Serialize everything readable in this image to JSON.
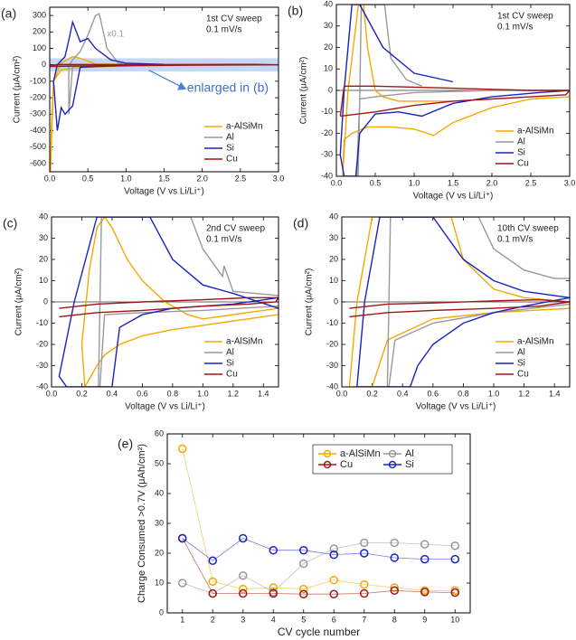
{
  "chart_data": [
    {
      "type": "line",
      "label": "(a)",
      "annotations": [
        "1st CV sweep",
        "0.1 mV/s"
      ],
      "scale_note": "x0.1",
      "callout": "enlarged in (b)",
      "xlabel": "Voltage (V vs Li/Li⁺)",
      "ylabel": "Current (μA/cm²)",
      "xlim": [
        0,
        3
      ],
      "ylim": [
        -650,
        350
      ],
      "xticks": [
        {
          "value": 0,
          "label": "0.0"
        },
        0.5,
        {
          "value": 1,
          "label": "1.0"
        },
        1.5,
        {
          "value": 2,
          "label": "2.0"
        },
        2.5,
        {
          "value": 3,
          "label": "3.0"
        }
      ],
      "yticks": [
        -600,
        -500,
        -400,
        -300,
        -200,
        -100,
        0,
        100,
        200,
        300
      ],
      "highlight": [
        -40,
        40
      ],
      "highlight_color": "#b8cdf0",
      "zero_line": true,
      "legend": "lower right",
      "series": [
        {
          "name": "a-AlSiMn",
          "color": "#f5a800",
          "x": [
            1.5,
            1.0,
            0.6,
            0.3,
            0.15,
            0.05,
            0.02,
            0.01,
            0.05,
            0.15,
            0.3,
            0.4,
            0.6,
            1.0,
            1.5
          ],
          "values": [
            -5,
            -8,
            -12,
            -20,
            -30,
            -100,
            -400,
            -650,
            -100,
            10,
            50,
            40,
            5,
            2,
            0
          ]
        },
        {
          "name": "Al",
          "color": "#999999",
          "x": [
            3.0,
            2.0,
            1.0,
            0.4,
            0.3,
            0.25,
            0.25,
            0.3,
            0.4,
            0.5,
            0.6,
            0.65,
            0.75,
            0.9,
            1.0
          ],
          "values": [
            0,
            0,
            -3,
            -5,
            -10,
            -300,
            -10,
            30,
            80,
            180,
            300,
            310,
            100,
            10,
            0
          ]
        },
        {
          "name": "Si",
          "color": "#1a22c0",
          "x": [
            1.5,
            1.0,
            0.6,
            0.4,
            0.3,
            0.2,
            0.15,
            0.1,
            0.05,
            0.1,
            0.2,
            0.25,
            0.3,
            0.4,
            0.5,
            0.6,
            0.8,
            1.0,
            1.5
          ],
          "values": [
            3,
            -5,
            -10,
            -15,
            -250,
            -300,
            -260,
            -400,
            -100,
            0,
            50,
            150,
            260,
            140,
            160,
            100,
            30,
            10,
            3
          ]
        },
        {
          "name": "Cu",
          "color": "#a01515",
          "x": [
            0,
            1,
            2,
            3,
            2.7,
            2,
            1,
            0.1,
            0
          ],
          "values": [
            -10,
            -5,
            -2,
            0,
            3,
            2,
            1,
            2,
            -10
          ]
        }
      ]
    },
    {
      "type": "line",
      "label": "(b)",
      "annotations": [
        "1st CV sweep",
        "0.1 mV/s"
      ],
      "xlabel": "Voltage (V vs Li/Li⁺)",
      "ylabel": "Current (μA/cm²)",
      "xlim": [
        0,
        3
      ],
      "ylim": [
        -40,
        40
      ],
      "xticks": [
        {
          "value": 0,
          "label": "0.0"
        },
        0.5,
        {
          "value": 1,
          "label": "1.0"
        },
        1.5,
        {
          "value": 2,
          "label": "2.0"
        },
        2.5,
        {
          "value": 3,
          "label": "3.0"
        }
      ],
      "yticks": [
        -40,
        -30,
        -20,
        -10,
        0,
        10,
        20,
        30,
        40
      ],
      "zero_line": true,
      "legend": "lower right",
      "series": [
        {
          "name": "a-AlSiMn",
          "color": "#f5a800",
          "x": [
            3.0,
            2.5,
            2.0,
            1.5,
            1.25,
            1.0,
            0.7,
            0.4,
            0.2,
            0.1,
            0.08,
            0.15,
            0.25,
            0.3,
            0.35,
            0.4,
            0.5,
            0.6,
            0.8,
            1.0,
            1.5
          ],
          "values": [
            -3,
            -4,
            -8,
            -15,
            -21,
            -18,
            -17,
            -17,
            -20,
            -23,
            -40,
            0,
            30,
            45,
            40,
            20,
            0,
            -3,
            -5,
            -5,
            -5
          ]
        },
        {
          "name": "Al",
          "color": "#999999",
          "x": [
            3,
            2,
            1,
            0.5,
            0.3,
            0.28,
            0.26,
            0.3,
            0.32,
            0.62,
            0.7,
            0.9,
            1.1
          ],
          "values": [
            0,
            0,
            -1,
            -3,
            -4,
            -40,
            -40,
            -5,
            40,
            40,
            15,
            5,
            2
          ]
        },
        {
          "name": "Si",
          "color": "#1a22c0",
          "x": [
            3.0,
            2.6,
            2.0,
            1.5,
            1.1,
            0.8,
            0.5,
            0.3,
            0.25,
            0.1,
            0.05,
            0.1,
            0.2,
            0.3,
            0.6,
            1.0,
            1.5
          ],
          "values": [
            0,
            -1,
            -3,
            -6,
            -12,
            -10,
            -11,
            -20,
            -40,
            -40,
            -30,
            0,
            40,
            40,
            20,
            8,
            4
          ]
        },
        {
          "name": "Cu",
          "color": "#a01515",
          "x": [
            0.05,
            0.5,
            1.0,
            1.5,
            2.0,
            2.5,
            2.95,
            3.0,
            2.5,
            2.0,
            1.5,
            1.0,
            0.5,
            0.1,
            0.05
          ],
          "values": [
            -12,
            -10,
            -7,
            -5,
            -4,
            -3,
            -2,
            0,
            0,
            0.5,
            1,
            1.5,
            2,
            2,
            -12
          ]
        }
      ]
    },
    {
      "type": "line",
      "label": "(c)",
      "annotations": [
        "2nd CV sweep",
        "0.1 mV/s"
      ],
      "xlabel": "Voltage (V vs Li/Li⁺)",
      "ylabel": "Current (μA/cm²)",
      "xlim": [
        0,
        1.5
      ],
      "ylim": [
        -40,
        40
      ],
      "xticks": [
        {
          "value": 0,
          "label": "0.0"
        },
        0.2,
        0.4,
        0.6,
        0.8,
        {
          "value": 1,
          "label": "1.0"
        },
        1.2,
        1.4
      ],
      "yticks": [
        -40,
        -30,
        -20,
        -10,
        0,
        10,
        20,
        30,
        40
      ],
      "zero_line": true,
      "legend": "lower right",
      "series": [
        {
          "name": "a-AlSiMn",
          "color": "#f5a800",
          "x": [
            1.5,
            1.2,
            1.0,
            0.8,
            0.6,
            0.45,
            0.35,
            0.3,
            0.22,
            0.2,
            0.25,
            0.3,
            0.35,
            0.4,
            0.5,
            0.6,
            0.75,
            0.9,
            1.0,
            1.2,
            1.5
          ],
          "values": [
            -6,
            -9,
            -11,
            -13,
            -16,
            -20,
            -25,
            -30,
            -40,
            -20,
            15,
            35,
            40,
            35,
            20,
            10,
            0,
            -6,
            -8,
            -6,
            -3
          ]
        },
        {
          "name": "Al",
          "color": "#999999",
          "x": [
            1.5,
            1.0,
            0.6,
            0.35,
            0.32,
            0.31,
            0.33,
            0.35,
            0.92,
            1.0,
            1.1,
            1.13,
            1.14,
            1.2,
            1.5
          ],
          "values": [
            -2,
            -4,
            -5,
            -6,
            -40,
            -40,
            40,
            40,
            40,
            25,
            15,
            12,
            17,
            5,
            3
          ]
        },
        {
          "name": "Si",
          "color": "#1a22c0",
          "x": [
            1.5,
            1.2,
            1.0,
            0.8,
            0.6,
            0.45,
            0.4,
            0.1,
            0.05,
            0.15,
            0.3,
            0.5,
            0.65,
            0.8,
            1.0,
            1.2,
            1.5
          ],
          "values": [
            2,
            -1,
            -2,
            -3,
            -6,
            -12,
            -40,
            -40,
            -35,
            0,
            40,
            40,
            40,
            20,
            8,
            4,
            -3
          ]
        },
        {
          "name": "Cu",
          "color": "#a01515",
          "x": [
            0.05,
            0.3,
            0.6,
            1.0,
            1.3,
            1.48,
            1.5,
            1.3,
            1.0,
            0.6,
            0.3,
            0.05
          ],
          "values": [
            -7,
            -5,
            -4,
            -2,
            -1,
            0,
            2,
            2,
            1,
            0,
            -1,
            -3
          ]
        }
      ]
    },
    {
      "type": "line",
      "label": "(d)",
      "annotations": [
        "10th CV sweep",
        "0.1 mV/s"
      ],
      "xlabel": "Voltage (V vs Li/Li⁺)",
      "ylabel": "Current (μA/cm²)",
      "xlim": [
        0,
        1.5
      ],
      "ylim": [
        -40,
        40
      ],
      "xticks": [
        {
          "value": 0,
          "label": "0.0"
        },
        0.2,
        0.4,
        0.6,
        0.8,
        {
          "value": 1,
          "label": "1.0"
        },
        1.2,
        1.4
      ],
      "yticks": [
        -40,
        -30,
        -20,
        -10,
        0,
        10,
        20,
        30,
        40
      ],
      "zero_line": true,
      "legend": "lower right",
      "series": [
        {
          "name": "a-AlSiMn",
          "color": "#f5a800",
          "x": [
            1.5,
            1.0,
            0.6,
            0.3,
            0.2,
            0.05,
            0.1,
            0.2,
            0.72,
            0.8,
            1.0,
            1.2,
            1.5
          ],
          "values": [
            -3,
            -5,
            -8,
            -18,
            -40,
            -40,
            0,
            40,
            40,
            20,
            6,
            2,
            0
          ]
        },
        {
          "name": "Al",
          "color": "#999999",
          "x": [
            1.5,
            1.0,
            0.6,
            0.35,
            0.31,
            0.3,
            0.32,
            0.33,
            0.9,
            1.0,
            1.2,
            1.4,
            1.5
          ],
          "values": [
            -1,
            -5,
            -10,
            -18,
            -40,
            -40,
            40,
            40,
            40,
            25,
            15,
            11,
            11
          ]
        },
        {
          "name": "Si",
          "color": "#1a22c0",
          "x": [
            1.5,
            1.2,
            1.0,
            0.8,
            0.6,
            0.5,
            0.45,
            0.1,
            0.15,
            0.25,
            0.6,
            0.8,
            1.0,
            1.2,
            1.5
          ],
          "values": [
            2,
            -2,
            -5,
            -10,
            -20,
            -30,
            -40,
            -40,
            0,
            40,
            40,
            20,
            10,
            5,
            2
          ]
        },
        {
          "name": "Cu",
          "color": "#a01515",
          "x": [
            0.05,
            0.3,
            0.6,
            1.0,
            1.3,
            1.5,
            1.3,
            1.0,
            0.6,
            0.3,
            0.05
          ],
          "values": [
            -7,
            -5,
            -4,
            -3,
            -2,
            0,
            1,
            0.5,
            -0.5,
            -1,
            -3
          ]
        }
      ]
    },
    {
      "type": "line",
      "label": "(e)",
      "markers": true,
      "xlabel": "CV cycle number",
      "ylabel": "Charge Consumed >0.7V (μAh/cm²)",
      "x": [
        1,
        2,
        3,
        4,
        5,
        6,
        7,
        8,
        9,
        10
      ],
      "xlim": [
        0.5,
        10.5
      ],
      "ylim": [
        0,
        60
      ],
      "xticks": [
        1,
        2,
        3,
        4,
        5,
        6,
        7,
        8,
        9,
        10
      ],
      "yticks": [
        0,
        10,
        20,
        30,
        40,
        50,
        60
      ],
      "legend": "upper right",
      "legend_columns": 2,
      "series": [
        {
          "name": "a-AlSiMn",
          "color": "#f5a800",
          "values": [
            55,
            10.5,
            8,
            8.5,
            8,
            11,
            9.5,
            8.5,
            7.5,
            7.5
          ]
        },
        {
          "name": "Al",
          "color": "#999999",
          "values": [
            10,
            6.5,
            12.5,
            7,
            16.5,
            21.5,
            23.5,
            23.5,
            23,
            22.5
          ]
        },
        {
          "name": "Cu",
          "color": "#a01515",
          "values": [
            25,
            6.5,
            6.5,
            6.5,
            6.3,
            6.3,
            6.5,
            7.5,
            7,
            6.8
          ]
        },
        {
          "name": "Si",
          "color": "#1a22c0",
          "values": [
            25,
            17.5,
            25,
            21,
            21,
            19.5,
            20,
            18.5,
            18,
            18
          ]
        }
      ]
    }
  ]
}
